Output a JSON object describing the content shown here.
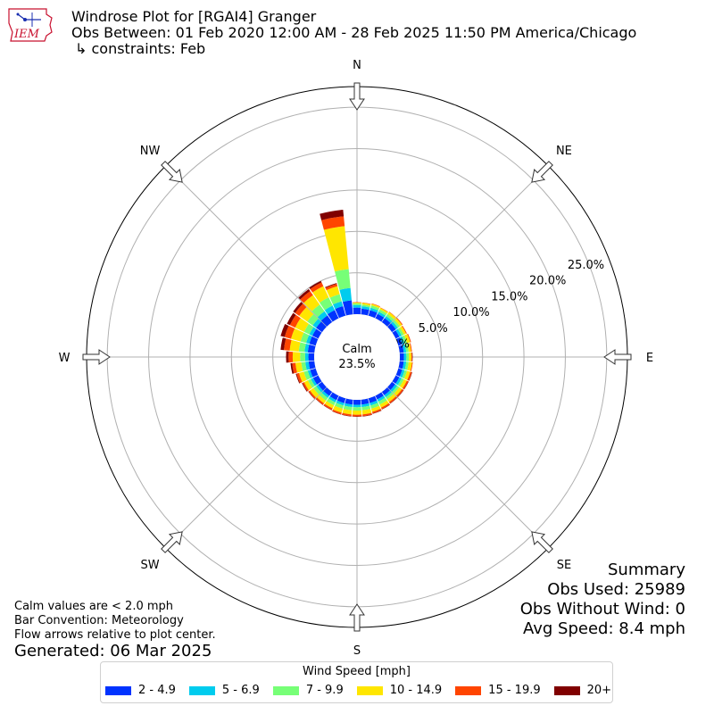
{
  "header": {
    "title": "Windrose Plot for [RGAI4] Granger",
    "subtitle": "Obs Between: 01 Feb 2020 12:00 AM - 28 Feb 2025 11:50 PM America/Chicago",
    "constraints": "↳ constraints: Feb",
    "logo_text": "IEM"
  },
  "notes": {
    "line1": "Calm values are < 2.0 mph",
    "line2": "Bar Convention: Meteorology",
    "line3": "Flow arrows relative to plot center.",
    "generated": "Generated: 06 Mar 2025"
  },
  "summary": {
    "title": "Summary",
    "obs_used": "Obs Used: 25989",
    "obs_without_wind": "Obs Without Wind: 0",
    "avg_speed": "Avg Speed: 8.4 mph"
  },
  "center": {
    "label": "Calm",
    "value": "23.5%"
  },
  "legend": {
    "title": "Wind Speed [mph]",
    "items": [
      {
        "label": "2 - 4.9",
        "color": "#0033ff"
      },
      {
        "label": "5 - 6.9",
        "color": "#00ccee"
      },
      {
        "label": "7 - 9.9",
        "color": "#77ff77"
      },
      {
        "label": "10 - 14.9",
        "color": "#ffe600"
      },
      {
        "label": "15 - 19.9",
        "color": "#ff4500"
      },
      {
        "label": "20+",
        "color": "#800000"
      }
    ]
  },
  "chart_data": {
    "type": "windrose",
    "calm_percent": 23.5,
    "radial_ticks": [
      0.0,
      5.0,
      10.0,
      15.0,
      20.0,
      25.0
    ],
    "radial_tick_labels": [
      "0.0%",
      "5.0%",
      "10.0%",
      "15.0%",
      "20.0%",
      "25.0%"
    ],
    "radial_max": 27.5,
    "direction_labels": [
      "N",
      "NE",
      "E",
      "SE",
      "S",
      "SW",
      "W",
      "NW"
    ],
    "bins": [
      "2 - 4.9",
      "5 - 6.9",
      "7 - 9.9",
      "10 - 14.9",
      "15 - 19.9",
      "20+"
    ],
    "sectors": [
      {
        "dir": 0,
        "values": [
          0.8,
          0.3,
          0.2,
          0.1,
          0.05,
          0.0
        ]
      },
      {
        "dir": 10,
        "values": [
          0.7,
          0.3,
          0.2,
          0.2,
          0.05,
          0.0
        ]
      },
      {
        "dir": 20,
        "values": [
          0.7,
          0.3,
          0.3,
          0.2,
          0.05,
          0.0
        ]
      },
      {
        "dir": 30,
        "values": [
          0.6,
          0.3,
          0.3,
          0.2,
          0.05,
          0.0
        ]
      },
      {
        "dir": 40,
        "values": [
          0.6,
          0.3,
          0.3,
          0.3,
          0.05,
          0.0
        ]
      },
      {
        "dir": 50,
        "values": [
          0.6,
          0.3,
          0.3,
          0.3,
          0.1,
          0.0
        ]
      },
      {
        "dir": 60,
        "values": [
          0.5,
          0.3,
          0.3,
          0.3,
          0.1,
          0.0
        ]
      },
      {
        "dir": 70,
        "values": [
          0.5,
          0.3,
          0.3,
          0.4,
          0.1,
          0.0
        ]
      },
      {
        "dir": 80,
        "values": [
          0.5,
          0.3,
          0.3,
          0.3,
          0.1,
          0.0
        ]
      },
      {
        "dir": 90,
        "values": [
          0.5,
          0.3,
          0.3,
          0.3,
          0.1,
          0.05
        ]
      },
      {
        "dir": 100,
        "values": [
          0.5,
          0.3,
          0.3,
          0.4,
          0.1,
          0.0
        ]
      },
      {
        "dir": 110,
        "values": [
          0.5,
          0.3,
          0.3,
          0.4,
          0.2,
          0.05
        ]
      },
      {
        "dir": 120,
        "values": [
          0.5,
          0.3,
          0.3,
          0.4,
          0.2,
          0.05
        ]
      },
      {
        "dir": 130,
        "values": [
          0.5,
          0.3,
          0.3,
          0.4,
          0.2,
          0.05
        ]
      },
      {
        "dir": 140,
        "values": [
          0.5,
          0.3,
          0.3,
          0.4,
          0.2,
          0.05
        ]
      },
      {
        "dir": 150,
        "values": [
          0.5,
          0.3,
          0.4,
          0.4,
          0.2,
          0.05
        ]
      },
      {
        "dir": 160,
        "values": [
          0.6,
          0.3,
          0.4,
          0.4,
          0.2,
          0.05
        ]
      },
      {
        "dir": 170,
        "values": [
          0.6,
          0.3,
          0.4,
          0.5,
          0.2,
          0.05
        ]
      },
      {
        "dir": 180,
        "values": [
          0.6,
          0.3,
          0.4,
          0.5,
          0.2,
          0.05
        ]
      },
      {
        "dir": 190,
        "values": [
          0.6,
          0.3,
          0.4,
          0.5,
          0.2,
          0.05
        ]
      },
      {
        "dir": 200,
        "values": [
          0.6,
          0.3,
          0.4,
          0.5,
          0.2,
          0.05
        ]
      },
      {
        "dir": 210,
        "values": [
          0.6,
          0.3,
          0.4,
          0.4,
          0.2,
          0.05
        ]
      },
      {
        "dir": 220,
        "values": [
          0.6,
          0.3,
          0.4,
          0.4,
          0.2,
          0.05
        ]
      },
      {
        "dir": 230,
        "values": [
          0.6,
          0.3,
          0.4,
          0.5,
          0.2,
          0.05
        ]
      },
      {
        "dir": 240,
        "values": [
          0.7,
          0.3,
          0.4,
          0.5,
          0.2,
          0.1
        ]
      },
      {
        "dir": 250,
        "values": [
          0.7,
          0.3,
          0.5,
          0.6,
          0.3,
          0.1
        ]
      },
      {
        "dir": 260,
        "values": [
          0.7,
          0.4,
          0.5,
          0.7,
          0.4,
          0.2
        ]
      },
      {
        "dir": 270,
        "values": [
          0.7,
          0.4,
          0.6,
          0.9,
          0.5,
          0.3
        ]
      },
      {
        "dir": 280,
        "values": [
          0.8,
          0.4,
          0.7,
          1.1,
          0.7,
          0.4
        ]
      },
      {
        "dir": 290,
        "values": [
          0.8,
          0.4,
          0.7,
          1.2,
          0.8,
          0.5
        ]
      },
      {
        "dir": 300,
        "values": [
          0.8,
          0.4,
          0.7,
          1.2,
          0.7,
          0.4
        ]
      },
      {
        "dir": 310,
        "values": [
          0.9,
          0.5,
          0.8,
          1.2,
          0.6,
          0.3
        ]
      },
      {
        "dir": 320,
        "values": [
          1.0,
          0.6,
          1.0,
          1.4,
          0.6,
          0.3
        ]
      },
      {
        "dir": 330,
        "values": [
          1.1,
          0.6,
          1.1,
          1.5,
          0.5,
          0.2
        ]
      },
      {
        "dir": 340,
        "values": [
          1.2,
          0.6,
          0.9,
          1.0,
          0.3,
          0.1
        ]
      },
      {
        "dir": 350,
        "values": [
          1.7,
          1.5,
          2.3,
          5.2,
          1.2,
          0.8
        ]
      }
    ]
  }
}
